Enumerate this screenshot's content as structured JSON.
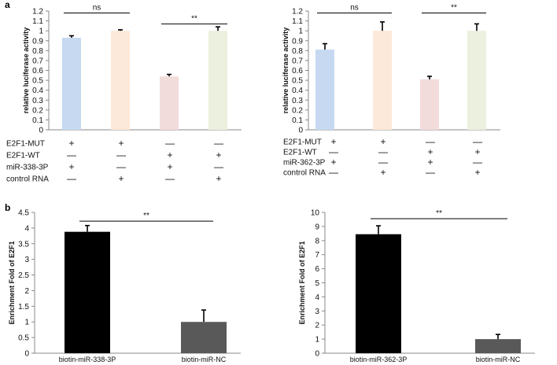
{
  "panel_labels": {
    "a": "a",
    "b": "b"
  },
  "matrix_symbols": {
    "plus": "+",
    "minus": "—"
  },
  "chart_data": [
    {
      "id": "a-left",
      "type": "bar",
      "panel": "a",
      "ylabel": "relative luciferase activity",
      "ylim": [
        0,
        1.2
      ],
      "yticks": [
        "0",
        "0.1",
        "0.2",
        "0.3",
        "0.4",
        "0.5",
        "0.6",
        "0.7",
        "0.8",
        "0.9",
        "1",
        "1.1",
        "1.2"
      ],
      "values": [
        0.93,
        1.0,
        0.54,
        1.0
      ],
      "errors": [
        0.02,
        0.01,
        0.02,
        0.04
      ],
      "colors": [
        "#c6d9f1",
        "#fde9d9",
        "#f2dcdb",
        "#ebf1de"
      ],
      "significance": [
        {
          "from": 0,
          "to": 1,
          "label": "ns",
          "level": 1.18
        },
        {
          "from": 2,
          "to": 3,
          "label": "**",
          "level": 1.07
        }
      ],
      "conditions": [
        {
          "label": "E2F1-MUT",
          "marks": [
            "+",
            "+",
            "—",
            "—"
          ]
        },
        {
          "label": "E2F1-WT",
          "marks": [
            "—",
            "—",
            "+",
            "+"
          ]
        },
        {
          "label": "miR-338-3P",
          "marks": [
            "+",
            "—",
            "+",
            "—"
          ]
        },
        {
          "label": "control RNA",
          "marks": [
            "—",
            "+",
            "—",
            "+"
          ]
        }
      ]
    },
    {
      "id": "a-right",
      "type": "bar",
      "panel": "a",
      "ylabel": "relative luciferase activity",
      "ylim": [
        0,
        1.2
      ],
      "yticks": [
        "0",
        "0.1",
        "0.2",
        "0.3",
        "0.4",
        "0.5",
        "0.6",
        "0.7",
        "0.8",
        "0.9",
        "1",
        "1.1",
        "1.2"
      ],
      "values": [
        0.81,
        1.0,
        0.51,
        1.0
      ],
      "errors": [
        0.06,
        0.09,
        0.03,
        0.07
      ],
      "colors": [
        "#c6d9f1",
        "#fde9d9",
        "#f2dcdb",
        "#ebf1de"
      ],
      "significance": [
        {
          "from": 0,
          "to": 1,
          "label": "ns",
          "level": 1.18
        },
        {
          "from": 2,
          "to": 3,
          "label": "**",
          "level": 1.18
        }
      ],
      "conditions": [
        {
          "label": "E2F1-MUT",
          "marks": [
            "+",
            "+",
            "—",
            "—"
          ]
        },
        {
          "label": "E2F1-WT",
          "marks": [
            "—",
            "—",
            "+",
            "+"
          ]
        },
        {
          "label": "miR-362-3P",
          "marks": [
            "+",
            "—",
            "+",
            "—"
          ]
        },
        {
          "label": "control RNA",
          "marks": [
            "—",
            "+",
            "—",
            "+"
          ]
        }
      ]
    },
    {
      "id": "b-left",
      "type": "bar",
      "panel": "b",
      "ylabel": "Enrichment Fold of E2F1",
      "ylim": [
        0,
        4.5
      ],
      "yticks": [
        "0",
        "0.5",
        "1",
        "1.5",
        "2",
        "2.5",
        "3",
        "3.5",
        "4",
        "4.5"
      ],
      "categories": [
        "biotin-miR-338-3P",
        "biotin-miR-NC"
      ],
      "values": [
        3.88,
        1.0
      ],
      "errors": [
        0.2,
        0.38
      ],
      "colors": [
        "#000000",
        "#595959"
      ],
      "significance": [
        {
          "from": 0,
          "to": 1,
          "label": "**",
          "level": 4.22
        }
      ]
    },
    {
      "id": "b-right",
      "type": "bar",
      "panel": "b",
      "ylabel": "Enrichment Fold of E2F1",
      "ylim": [
        0,
        10
      ],
      "yticks": [
        "0",
        "1",
        "2",
        "3",
        "4",
        "5",
        "6",
        "7",
        "8",
        "9",
        "10"
      ],
      "categories": [
        "biotin-miR-362-3P",
        "biotin-miR-NC"
      ],
      "values": [
        8.45,
        1.0
      ],
      "errors": [
        0.6,
        0.33
      ],
      "colors": [
        "#000000",
        "#595959"
      ],
      "significance": [
        {
          "from": 0,
          "to": 1,
          "label": "**",
          "level": 9.55
        }
      ]
    }
  ]
}
